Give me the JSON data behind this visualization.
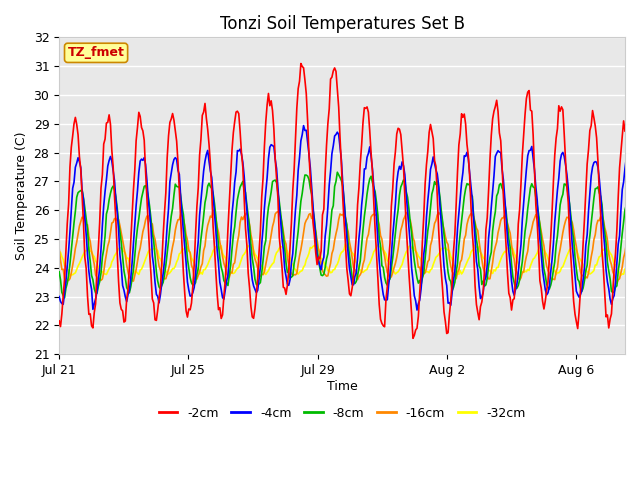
{
  "title": "Tonzi Soil Temperatures Set B",
  "xlabel": "Time",
  "ylabel": "Soil Temperature (C)",
  "ylim": [
    21.0,
    32.0
  ],
  "yticks": [
    21.0,
    22.0,
    23.0,
    24.0,
    25.0,
    26.0,
    27.0,
    28.0,
    29.0,
    30.0,
    31.0,
    32.0
  ],
  "xtick_labels": [
    "Jul 21",
    "Jul 25",
    "Jul 29",
    "Aug 2",
    "Aug 6"
  ],
  "xtick_positions": [
    0,
    4,
    8,
    12,
    16
  ],
  "xlim": [
    0,
    17.5
  ],
  "colors": {
    "-2cm": "#ff0000",
    "-4cm": "#0000ff",
    "-8cm": "#00bb00",
    "-16cm": "#ff8800",
    "-32cm": "#ffff00"
  },
  "legend_labels": [
    "-2cm",
    "-4cm",
    "-8cm",
    "-16cm",
    "-32cm"
  ],
  "annotation_text": "TZ_fmet",
  "annotation_color": "#cc0000",
  "annotation_bg": "#ffff99",
  "annotation_border": "#cc8800",
  "fig_bg": "#ffffff",
  "plot_bg": "#e8e8e8",
  "grid_color": "#ffffff",
  "title_fontsize": 12,
  "axis_fontsize": 9,
  "tick_fontsize": 9,
  "legend_fontsize": 9,
  "line_width": 1.2,
  "n_points": 432
}
